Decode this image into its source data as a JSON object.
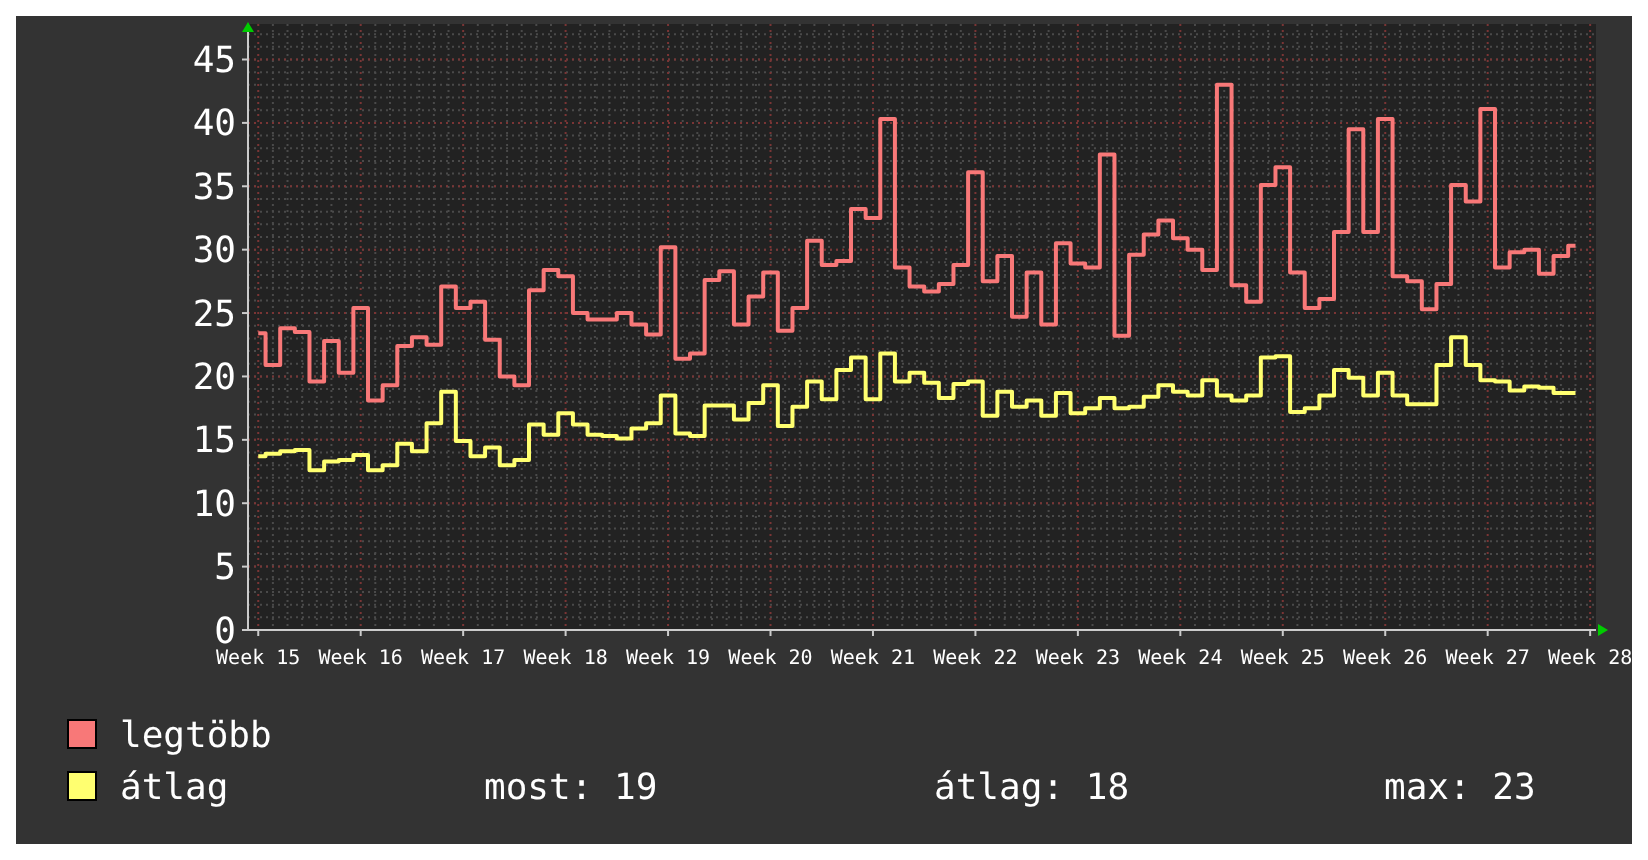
{
  "chart_data": {
    "type": "step",
    "categories": [
      "Week 15",
      null,
      null,
      null,
      null,
      null,
      null,
      "Week 16",
      null,
      null,
      null,
      null,
      null,
      null,
      "Week 17",
      null,
      null,
      null,
      null,
      null,
      null,
      "Week 18",
      null,
      null,
      null,
      null,
      null,
      null,
      "Week 19",
      null,
      null,
      null,
      null,
      null,
      null,
      "Week 20",
      null,
      null,
      null,
      null,
      null,
      null,
      "Week 21",
      null,
      null,
      null,
      null,
      null,
      null,
      "Week 22",
      null,
      null,
      null,
      null,
      null,
      null,
      "Week 23",
      null,
      null,
      null,
      null,
      null,
      null,
      "Week 24",
      null,
      null,
      null,
      null,
      null,
      null,
      "Week 25",
      null,
      null,
      null,
      null,
      null,
      null,
      "Week 26",
      null,
      null,
      null,
      null,
      null,
      null,
      "Week 27",
      null,
      null,
      null,
      null,
      null,
      null,
      "Week 28"
    ],
    "series": [
      {
        "name": "legtöbb",
        "color": "#f87878",
        "values": [
          23.4,
          20.9,
          23.8,
          23.5,
          19.6,
          22.8,
          20.3,
          25.4,
          18.1,
          19.3,
          22.4,
          23.1,
          22.5,
          27.1,
          25.4,
          25.9,
          22.9,
          20.0,
          19.3,
          26.8,
          28.4,
          27.9,
          25.0,
          24.5,
          24.5,
          25.0,
          24.1,
          23.3,
          30.2,
          21.4,
          21.8,
          27.6,
          28.3,
          24.1,
          26.3,
          28.2,
          23.6,
          25.4,
          30.7,
          28.8,
          29.1,
          33.2,
          32.5,
          40.3,
          28.6,
          27.1,
          26.7,
          27.3,
          28.8,
          36.1,
          27.5,
          29.5,
          24.7,
          28.2,
          24.1,
          30.5,
          28.9,
          28.6,
          37.5,
          23.2,
          29.6,
          31.2,
          32.3,
          30.9,
          30.0,
          28.4,
          43.0,
          27.2,
          25.9,
          35.1,
          36.5,
          28.2,
          25.4,
          26.1,
          31.4,
          39.5,
          31.4,
          40.3,
          27.9,
          27.5,
          25.3,
          27.3,
          35.1,
          33.8,
          41.1,
          28.6,
          29.8,
          30.0,
          28.1,
          29.5,
          30.3,
          null
        ]
      },
      {
        "name": "átlag",
        "color": "#ffff70",
        "values": [
          13.7,
          13.9,
          14.1,
          14.2,
          12.6,
          13.3,
          13.4,
          13.8,
          12.6,
          13.0,
          14.7,
          14.1,
          16.3,
          18.8,
          14.9,
          13.7,
          14.4,
          13.0,
          13.4,
          16.2,
          15.4,
          17.1,
          16.2,
          15.4,
          15.3,
          15.1,
          15.9,
          16.3,
          18.5,
          15.5,
          15.3,
          17.7,
          17.7,
          16.6,
          17.9,
          19.3,
          16.1,
          17.6,
          19.6,
          18.2,
          20.5,
          21.5,
          18.2,
          21.8,
          19.6,
          20.3,
          19.5,
          18.3,
          19.4,
          19.6,
          16.9,
          18.8,
          17.6,
          18.1,
          16.9,
          18.7,
          17.1,
          17.5,
          18.3,
          17.5,
          17.6,
          18.4,
          19.3,
          18.8,
          18.5,
          19.7,
          18.5,
          18.1,
          18.5,
          21.5,
          21.6,
          17.2,
          17.5,
          18.5,
          20.5,
          19.9,
          18.5,
          20.3,
          18.5,
          17.8,
          17.8,
          20.9,
          23.1,
          20.9,
          19.7,
          19.6,
          18.9,
          19.2,
          19.1,
          18.7,
          18.7,
          null
        ]
      }
    ],
    "ylim": [
      0,
      47.8
    ],
    "yticks": [
      0,
      5,
      10,
      15,
      20,
      25,
      30,
      35,
      40,
      45
    ],
    "grid": true,
    "legend": "bottom",
    "annotations": [
      "most: 19",
      "átlag: 18",
      "max: 23"
    ]
  }
}
